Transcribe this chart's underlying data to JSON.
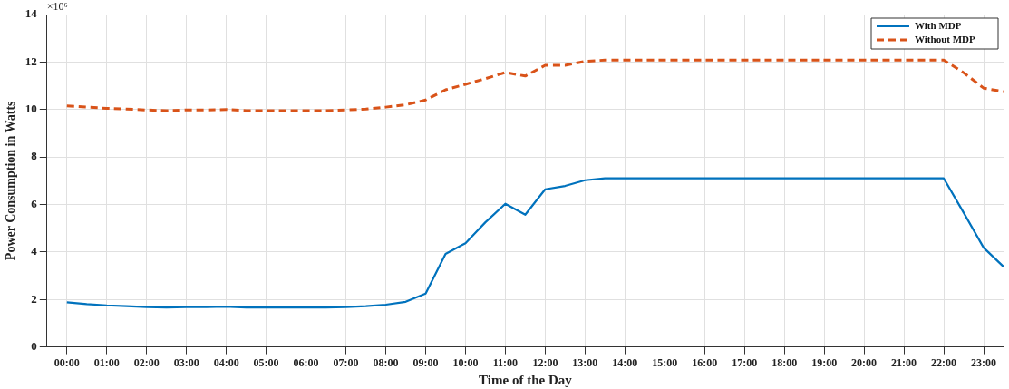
{
  "chart_data": {
    "type": "line",
    "xlabel": "Time of the Day",
    "ylabel": "Power Consumption in Watts",
    "annotations": [
      "×10⁶"
    ],
    "x": [
      0,
      0.5,
      1,
      1.5,
      2,
      2.5,
      3,
      3.5,
      4,
      4.5,
      5,
      5.5,
      6,
      6.5,
      7,
      7.5,
      8,
      8.5,
      9,
      9.5,
      10,
      10.5,
      11,
      11.5,
      12,
      12.5,
      13,
      13.5,
      14,
      14.5,
      15,
      15.5,
      16,
      16.5,
      17,
      17.5,
      18,
      18.5,
      19,
      19.5,
      20,
      20.5,
      21,
      21.5,
      22,
      22.5,
      23,
      23.5
    ],
    "series": [
      {
        "name": "With MDP",
        "color": "#0072bd",
        "line_style": "solid",
        "values": [
          1.88,
          1.8,
          1.75,
          1.72,
          1.68,
          1.66,
          1.68,
          1.68,
          1.7,
          1.66,
          1.66,
          1.66,
          1.66,
          1.66,
          1.68,
          1.72,
          1.78,
          1.9,
          2.25,
          3.92,
          4.37,
          5.25,
          6.03,
          5.57,
          6.64,
          6.78,
          7.02,
          7.1,
          7.1,
          7.1,
          7.1,
          7.1,
          7.1,
          7.1,
          7.1,
          7.1,
          7.1,
          7.1,
          7.1,
          7.1,
          7.1,
          7.1,
          7.1,
          7.1,
          7.1,
          5.65,
          4.18,
          3.38
        ]
      },
      {
        "name": "Without MDP",
        "color": "#d95319",
        "line_style": "dashed",
        "values": [
          10.15,
          10.1,
          10.05,
          10.02,
          9.98,
          9.95,
          9.98,
          9.98,
          10.0,
          9.95,
          9.95,
          9.95,
          9.95,
          9.95,
          9.98,
          10.02,
          10.1,
          10.2,
          10.4,
          10.83,
          11.06,
          11.3,
          11.56,
          11.41,
          11.86,
          11.86,
          12.03,
          12.08,
          12.08,
          12.08,
          12.08,
          12.08,
          12.08,
          12.08,
          12.08,
          12.08,
          12.08,
          12.08,
          12.08,
          12.08,
          12.08,
          12.08,
          12.08,
          12.08,
          12.08,
          11.55,
          10.9,
          10.75
        ]
      }
    ],
    "xlim": [
      -0.5,
      23.5
    ],
    "xticks": [
      {
        "value": 0,
        "label": "00:00"
      },
      {
        "value": 1,
        "label": "01:00"
      },
      {
        "value": 2,
        "label": "02:00"
      },
      {
        "value": 3,
        "label": "03:00"
      },
      {
        "value": 4,
        "label": "04:00"
      },
      {
        "value": 5,
        "label": "05:00"
      },
      {
        "value": 6,
        "label": "06:00"
      },
      {
        "value": 7,
        "label": "07:00"
      },
      {
        "value": 8,
        "label": "08:00"
      },
      {
        "value": 9,
        "label": "09:00"
      },
      {
        "value": 10,
        "label": "10:00"
      },
      {
        "value": 11,
        "label": "11:00"
      },
      {
        "value": 12,
        "label": "12:00"
      },
      {
        "value": 13,
        "label": "13:00"
      },
      {
        "value": 14,
        "label": "14:00"
      },
      {
        "value": 15,
        "label": "15:00"
      },
      {
        "value": 16,
        "label": "16:00"
      },
      {
        "value": 17,
        "label": "17:00"
      },
      {
        "value": 18,
        "label": "18:00"
      },
      {
        "value": 19,
        "label": "19:00"
      },
      {
        "value": 20,
        "label": "20:00"
      },
      {
        "value": 21,
        "label": "21:00"
      },
      {
        "value": 22,
        "label": "22:00"
      },
      {
        "value": 23,
        "label": "23:00"
      }
    ],
    "ylim": [
      0,
      14
    ],
    "yticks": [
      0,
      2,
      4,
      6,
      8,
      10,
      12,
      14
    ],
    "grid": true,
    "legend": "top right",
    "marker": "none"
  }
}
